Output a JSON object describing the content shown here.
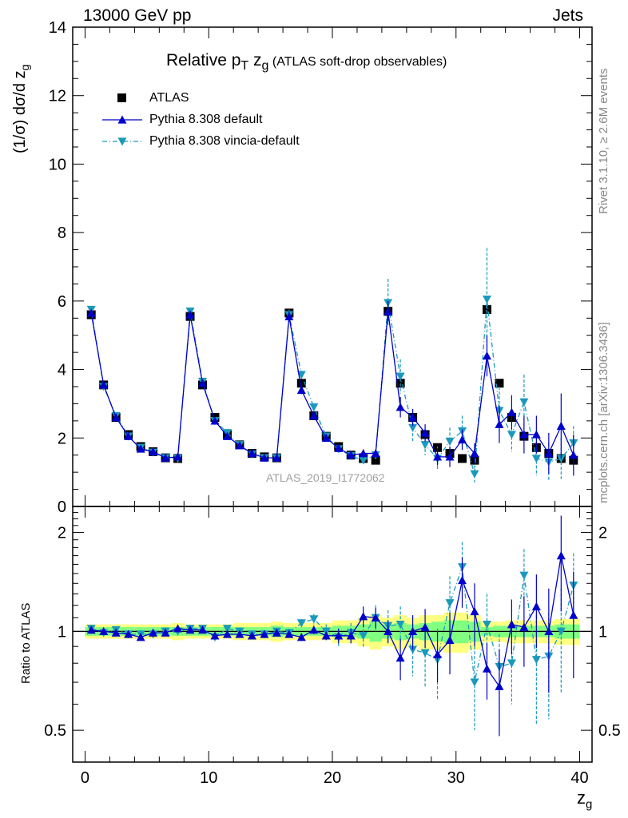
{
  "header": {
    "left": "13000 GeV pp",
    "right": "Jets"
  },
  "side_labels": {
    "rivet": "Rivet 3.1.10, ≥ 2.6M events",
    "mcplots": "mcplots.cern.ch [arXiv:1306.3436]"
  },
  "watermark": "ATLAS_2019_I1772062",
  "colors": {
    "atlas": "#000000",
    "pythia_default": "#0000cc",
    "pythia_vincia": "#1a99bb",
    "band_outer": "#ffff80",
    "band_inner": "#80ff80"
  },
  "chart_data": [
    {
      "type": "scatter",
      "title_main": "Relative p",
      "title_sub1": "T",
      "title_mid": " z",
      "title_sub2": "g",
      "title_rest": " (ATLAS soft-drop observables)",
      "ylabel": "(1/σ) dσ/d z",
      "ylabel_sub": "g",
      "ylim": [
        0,
        14
      ],
      "yticks": [
        0,
        2,
        4,
        6,
        8,
        10,
        12,
        14
      ],
      "legend_position": "top-left",
      "x": [
        0.5,
        1.5,
        2.5,
        3.5,
        4.5,
        5.5,
        6.5,
        7.5,
        8.5,
        9.5,
        10.5,
        11.5,
        12.5,
        13.5,
        14.5,
        15.5,
        16.5,
        17.5,
        18.5,
        19.5,
        20.5,
        21.5,
        22.5,
        23.5,
        24.5,
        25.5,
        26.5,
        27.5,
        28.5,
        29.5,
        30.5,
        31.5,
        32.5,
        33.5,
        34.5,
        35.5,
        36.5,
        37.5,
        38.5,
        39.5
      ],
      "series": [
        {
          "name": "ATLAS",
          "marker": "square",
          "values": [
            5.6,
            3.55,
            2.6,
            2.1,
            1.75,
            1.6,
            1.42,
            1.4,
            5.55,
            3.55,
            2.6,
            2.1,
            1.8,
            1.55,
            1.45,
            1.42,
            5.65,
            3.6,
            2.65,
            2.05,
            1.75,
            1.5,
            1.4,
            1.35,
            5.7,
            3.6,
            2.6,
            2.1,
            1.72,
            1.55,
            1.4,
            1.35,
            5.75,
            3.6,
            2.6,
            2.05,
            1.72,
            1.55,
            1.4,
            1.35
          ]
        },
        {
          "name": "Pythia 8.308 default",
          "marker": "triangle-up",
          "values": [
            5.65,
            3.55,
            2.6,
            2.05,
            1.68,
            1.6,
            1.42,
            1.45,
            5.6,
            3.6,
            2.5,
            2.05,
            1.78,
            1.55,
            1.42,
            1.42,
            5.55,
            3.4,
            2.65,
            2.0,
            1.7,
            1.5,
            1.55,
            1.55,
            5.7,
            2.9,
            2.6,
            2.15,
            1.45,
            1.45,
            1.95,
            1.55,
            4.4,
            2.4,
            2.75,
            2.1,
            2.1,
            1.55,
            2.35,
            1.5
          ],
          "errors": [
            0.05,
            0.05,
            0.05,
            0.05,
            0.05,
            0.05,
            0.05,
            0.05,
            0.08,
            0.08,
            0.07,
            0.06,
            0.06,
            0.06,
            0.06,
            0.06,
            0.15,
            0.12,
            0.1,
            0.1,
            0.1,
            0.1,
            0.12,
            0.12,
            0.3,
            0.3,
            0.25,
            0.25,
            0.25,
            0.3,
            0.3,
            0.3,
            0.6,
            0.55,
            0.5,
            0.55,
            0.55,
            0.6,
            0.95,
            0.6
          ]
        },
        {
          "name": "Pythia 8.308 vincia-default",
          "marker": "triangle-down",
          "values": [
            5.75,
            3.5,
            2.65,
            2.05,
            1.72,
            1.58,
            1.42,
            1.4,
            5.7,
            3.65,
            2.5,
            2.15,
            1.8,
            1.52,
            1.42,
            1.42,
            5.6,
            3.85,
            2.9,
            2.05,
            1.68,
            1.48,
            1.35,
            1.5,
            5.95,
            3.8,
            2.3,
            1.8,
            1.4,
            1.9,
            2.2,
            0.95,
            6.05,
            2.8,
            2.1,
            3.05,
            1.4,
            1.3,
            1.4,
            1.85
          ],
          "errors": [
            0.05,
            0.05,
            0.05,
            0.05,
            0.05,
            0.05,
            0.05,
            0.05,
            0.08,
            0.08,
            0.07,
            0.06,
            0.06,
            0.06,
            0.06,
            0.06,
            0.15,
            0.12,
            0.1,
            0.1,
            0.1,
            0.1,
            0.12,
            0.12,
            0.7,
            0.5,
            0.4,
            0.3,
            0.35,
            0.4,
            0.45,
            0.25,
            1.5,
            0.7,
            0.5,
            0.8,
            0.5,
            0.55,
            0.6,
            0.5
          ]
        }
      ]
    },
    {
      "type": "scatter",
      "xlabel": "z",
      "xlabel_sub": "g",
      "ylabel": "Ratio to ATLAS",
      "ylim": [
        0.4,
        2.4
      ],
      "yscale": "log",
      "yticks": [
        0.5,
        1,
        2
      ],
      "xlim": [
        -1,
        41
      ],
      "xticks": [
        0,
        10,
        20,
        30,
        40
      ],
      "reference": 1,
      "band_outer": [
        0.05,
        0.05,
        0.05,
        0.05,
        0.05,
        0.05,
        0.05,
        0.06,
        0.05,
        0.05,
        0.05,
        0.05,
        0.06,
        0.06,
        0.06,
        0.07,
        0.06,
        0.06,
        0.06,
        0.06,
        0.08,
        0.08,
        0.1,
        0.12,
        0.1,
        0.12,
        0.1,
        0.12,
        0.12,
        0.14,
        0.14,
        0.12,
        0.07,
        0.07,
        0.08,
        0.08,
        0.08,
        0.08,
        0.09,
        0.09
      ],
      "band_inner": [
        0.03,
        0.03,
        0.03,
        0.03,
        0.03,
        0.03,
        0.03,
        0.03,
        0.03,
        0.03,
        0.03,
        0.03,
        0.03,
        0.03,
        0.03,
        0.04,
        0.03,
        0.03,
        0.03,
        0.03,
        0.04,
        0.04,
        0.05,
        0.07,
        0.05,
        0.06,
        0.05,
        0.06,
        0.07,
        0.08,
        0.08,
        0.07,
        0.03,
        0.04,
        0.04,
        0.04,
        0.04,
        0.04,
        0.05,
        0.05
      ],
      "series": [
        {
          "name": "Pythia 8.308 default",
          "values": [
            1.01,
            1.0,
            0.99,
            0.98,
            0.96,
            0.99,
            0.99,
            1.02,
            1.01,
            1.01,
            0.97,
            0.98,
            0.98,
            0.97,
            0.98,
            0.99,
            0.98,
            0.96,
            1.01,
            0.97,
            0.97,
            0.97,
            1.11,
            1.1,
            1.0,
            0.83,
            1.0,
            1.03,
            0.85,
            0.94,
            1.43,
            1.15,
            0.77,
            0.68,
            1.05,
            1.03,
            1.19,
            1.0,
            1.7,
            1.12
          ],
          "errors": [
            0.01,
            0.01,
            0.02,
            0.02,
            0.02,
            0.02,
            0.02,
            0.02,
            0.02,
            0.02,
            0.02,
            0.02,
            0.02,
            0.02,
            0.02,
            0.02,
            0.02,
            0.02,
            0.03,
            0.03,
            0.05,
            0.05,
            0.08,
            0.08,
            0.08,
            0.12,
            0.12,
            0.14,
            0.15,
            0.2,
            0.25,
            0.25,
            0.15,
            0.2,
            0.2,
            0.25,
            0.3,
            0.35,
            0.55,
            0.4
          ]
        },
        {
          "name": "Pythia 8.308 vincia-default",
          "values": [
            1.02,
            0.99,
            1.01,
            0.98,
            0.98,
            0.98,
            1.0,
            1.0,
            1.02,
            1.02,
            0.96,
            1.02,
            1.0,
            0.98,
            0.98,
            1.0,
            0.99,
            1.06,
            1.09,
            1.0,
            0.96,
            0.99,
            0.97,
            1.1,
            1.04,
            1.05,
            0.88,
            0.86,
            0.82,
            1.22,
            1.57,
            0.7,
            1.05,
            0.78,
            0.8,
            1.48,
            0.82,
            0.84,
            1.0,
            1.38
          ],
          "errors": [
            0.01,
            0.01,
            0.02,
            0.02,
            0.02,
            0.02,
            0.02,
            0.02,
            0.02,
            0.02,
            0.02,
            0.02,
            0.02,
            0.02,
            0.02,
            0.02,
            0.03,
            0.03,
            0.04,
            0.05,
            0.06,
            0.07,
            0.08,
            0.1,
            0.12,
            0.14,
            0.15,
            0.18,
            0.2,
            0.25,
            0.3,
            0.2,
            0.25,
            0.2,
            0.2,
            0.3,
            0.3,
            0.3,
            0.35,
            0.35
          ]
        }
      ]
    }
  ]
}
